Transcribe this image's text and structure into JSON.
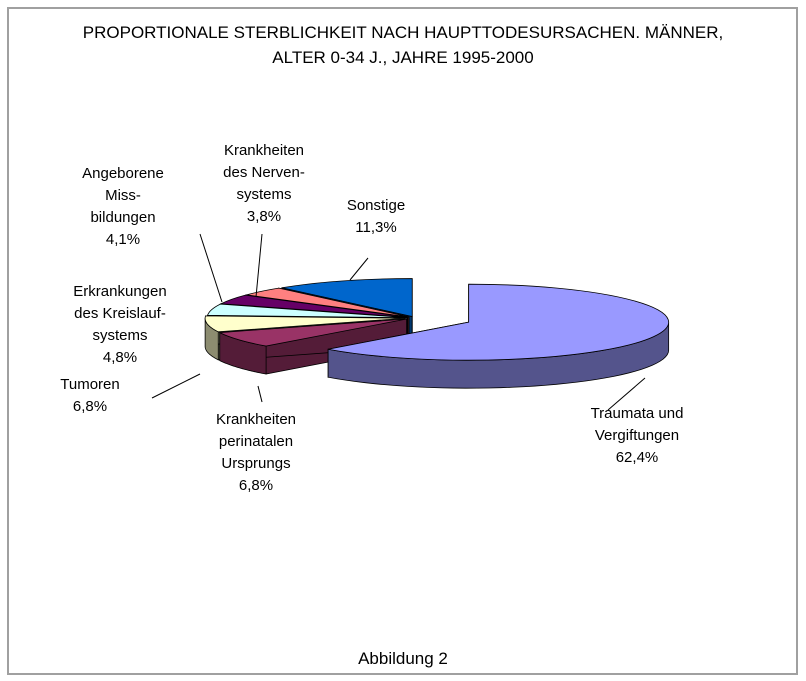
{
  "chart_data": {
    "type": "pie3d",
    "title": "PROPORTIONALE STERBLICHKEIT NACH HAUPTTODESURSACHEN. MÄNNER,\nALTER 0-34 J., JAHRE 1995-2000",
    "caption": "Abbildung 2",
    "categories": [
      "Traumata und\nVergiftungen",
      "Krankheiten\nperinatalen\nUrsprungs",
      "Tumoren",
      "Erkrankungen\ndes Kreislauf-\nsystems",
      "Angeborene\nMiss-\nbildungen",
      "Krankheiten\ndes Nerven-\nsystems",
      "Sonstige"
    ],
    "values": [
      62.4,
      6.8,
      6.8,
      4.8,
      4.1,
      3.8,
      11.3
    ],
    "value_labels": [
      "62,4%",
      "6,8%",
      "6,8%",
      "4,8%",
      "4,1%",
      "3,8%",
      "11,3%"
    ],
    "colors": [
      "#9999ff",
      "#993366",
      "#ffffcc",
      "#ccffff",
      "#660066",
      "#ff8080",
      "#0066cc"
    ]
  }
}
